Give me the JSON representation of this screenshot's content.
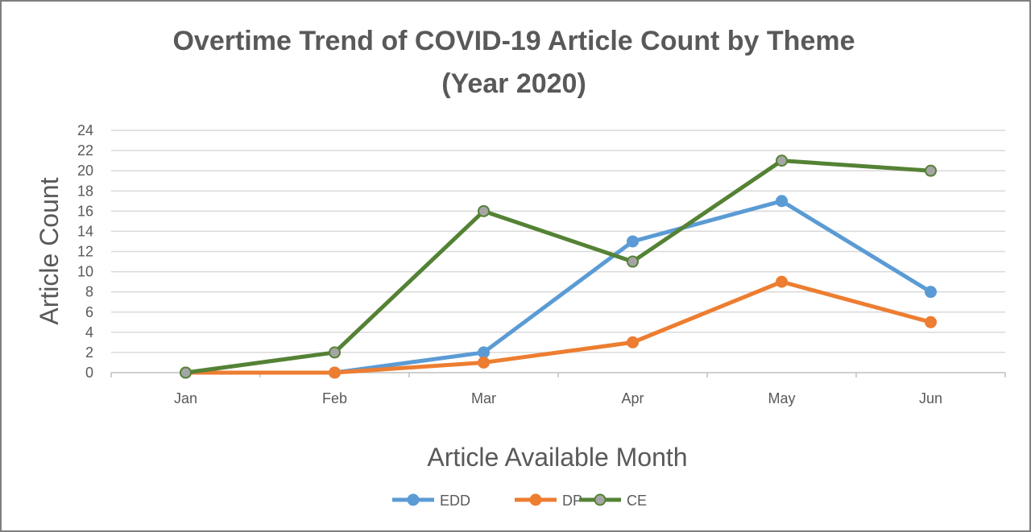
{
  "chart_data": {
    "type": "line",
    "title_line1": "Overtime Trend of COVID-19 Article Count by Theme",
    "title_line2": "(Year 2020)",
    "xlabel": "Article Available Month",
    "ylabel": "Article Count",
    "categories": [
      "Jan",
      "Feb",
      "Mar",
      "Apr",
      "May",
      "Jun"
    ],
    "ylim": [
      0,
      24
    ],
    "yticks": [
      0,
      2,
      4,
      6,
      8,
      10,
      12,
      14,
      16,
      18,
      20,
      22,
      24
    ],
    "grid": true,
    "legend_position": "bottom",
    "series": [
      {
        "name": "EDD",
        "values": [
          0,
          0,
          2,
          13,
          17,
          8
        ],
        "color": "#5b9bd5",
        "marker_fill": "#5b9bd5"
      },
      {
        "name": "DP",
        "values": [
          0,
          0,
          1,
          3,
          9,
          5
        ],
        "color": "#ed7d31",
        "marker_fill": "#ed7d31"
      },
      {
        "name": "CE",
        "values": [
          0,
          2,
          16,
          11,
          21,
          20
        ],
        "color": "#548235",
        "marker_fill": "#a5a5a5"
      }
    ]
  }
}
